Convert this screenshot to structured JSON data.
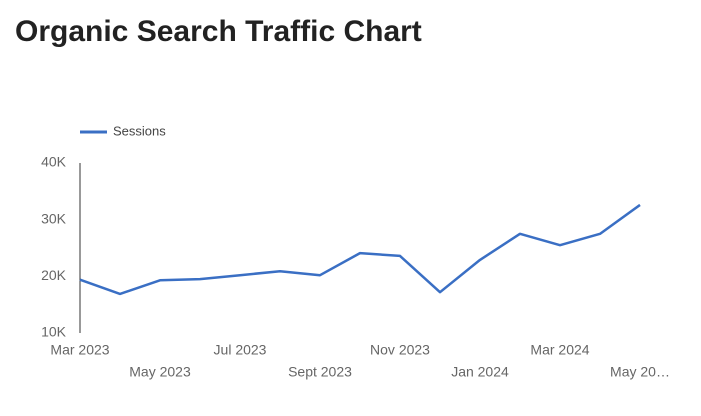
{
  "chart_data": {
    "type": "line",
    "title": "Organic Search Traffic Chart",
    "categories": [
      "Mar 2023",
      null,
      "May 2023",
      null,
      "Jul 2023",
      null,
      "Sept 2023",
      null,
      "Nov 2023",
      null,
      "Jan 2024",
      null,
      "Mar 2024",
      null,
      "May 20…"
    ],
    "series": [
      {
        "name": "Sessions",
        "color": "#3a6fc4",
        "values": [
          19400,
          16900,
          19300,
          19500,
          20200,
          20900,
          20200,
          24100,
          23600,
          17200,
          22900,
          27500,
          25500,
          27500,
          32600
        ]
      }
    ],
    "ylim": [
      10000,
      40000
    ],
    "yticks": [
      {
        "value": 10000,
        "label": "10K"
      },
      {
        "value": 20000,
        "label": "20K"
      },
      {
        "value": 30000,
        "label": "30K"
      },
      {
        "value": 40000,
        "label": "40K"
      }
    ],
    "grid": false,
    "legend": "top-left"
  }
}
